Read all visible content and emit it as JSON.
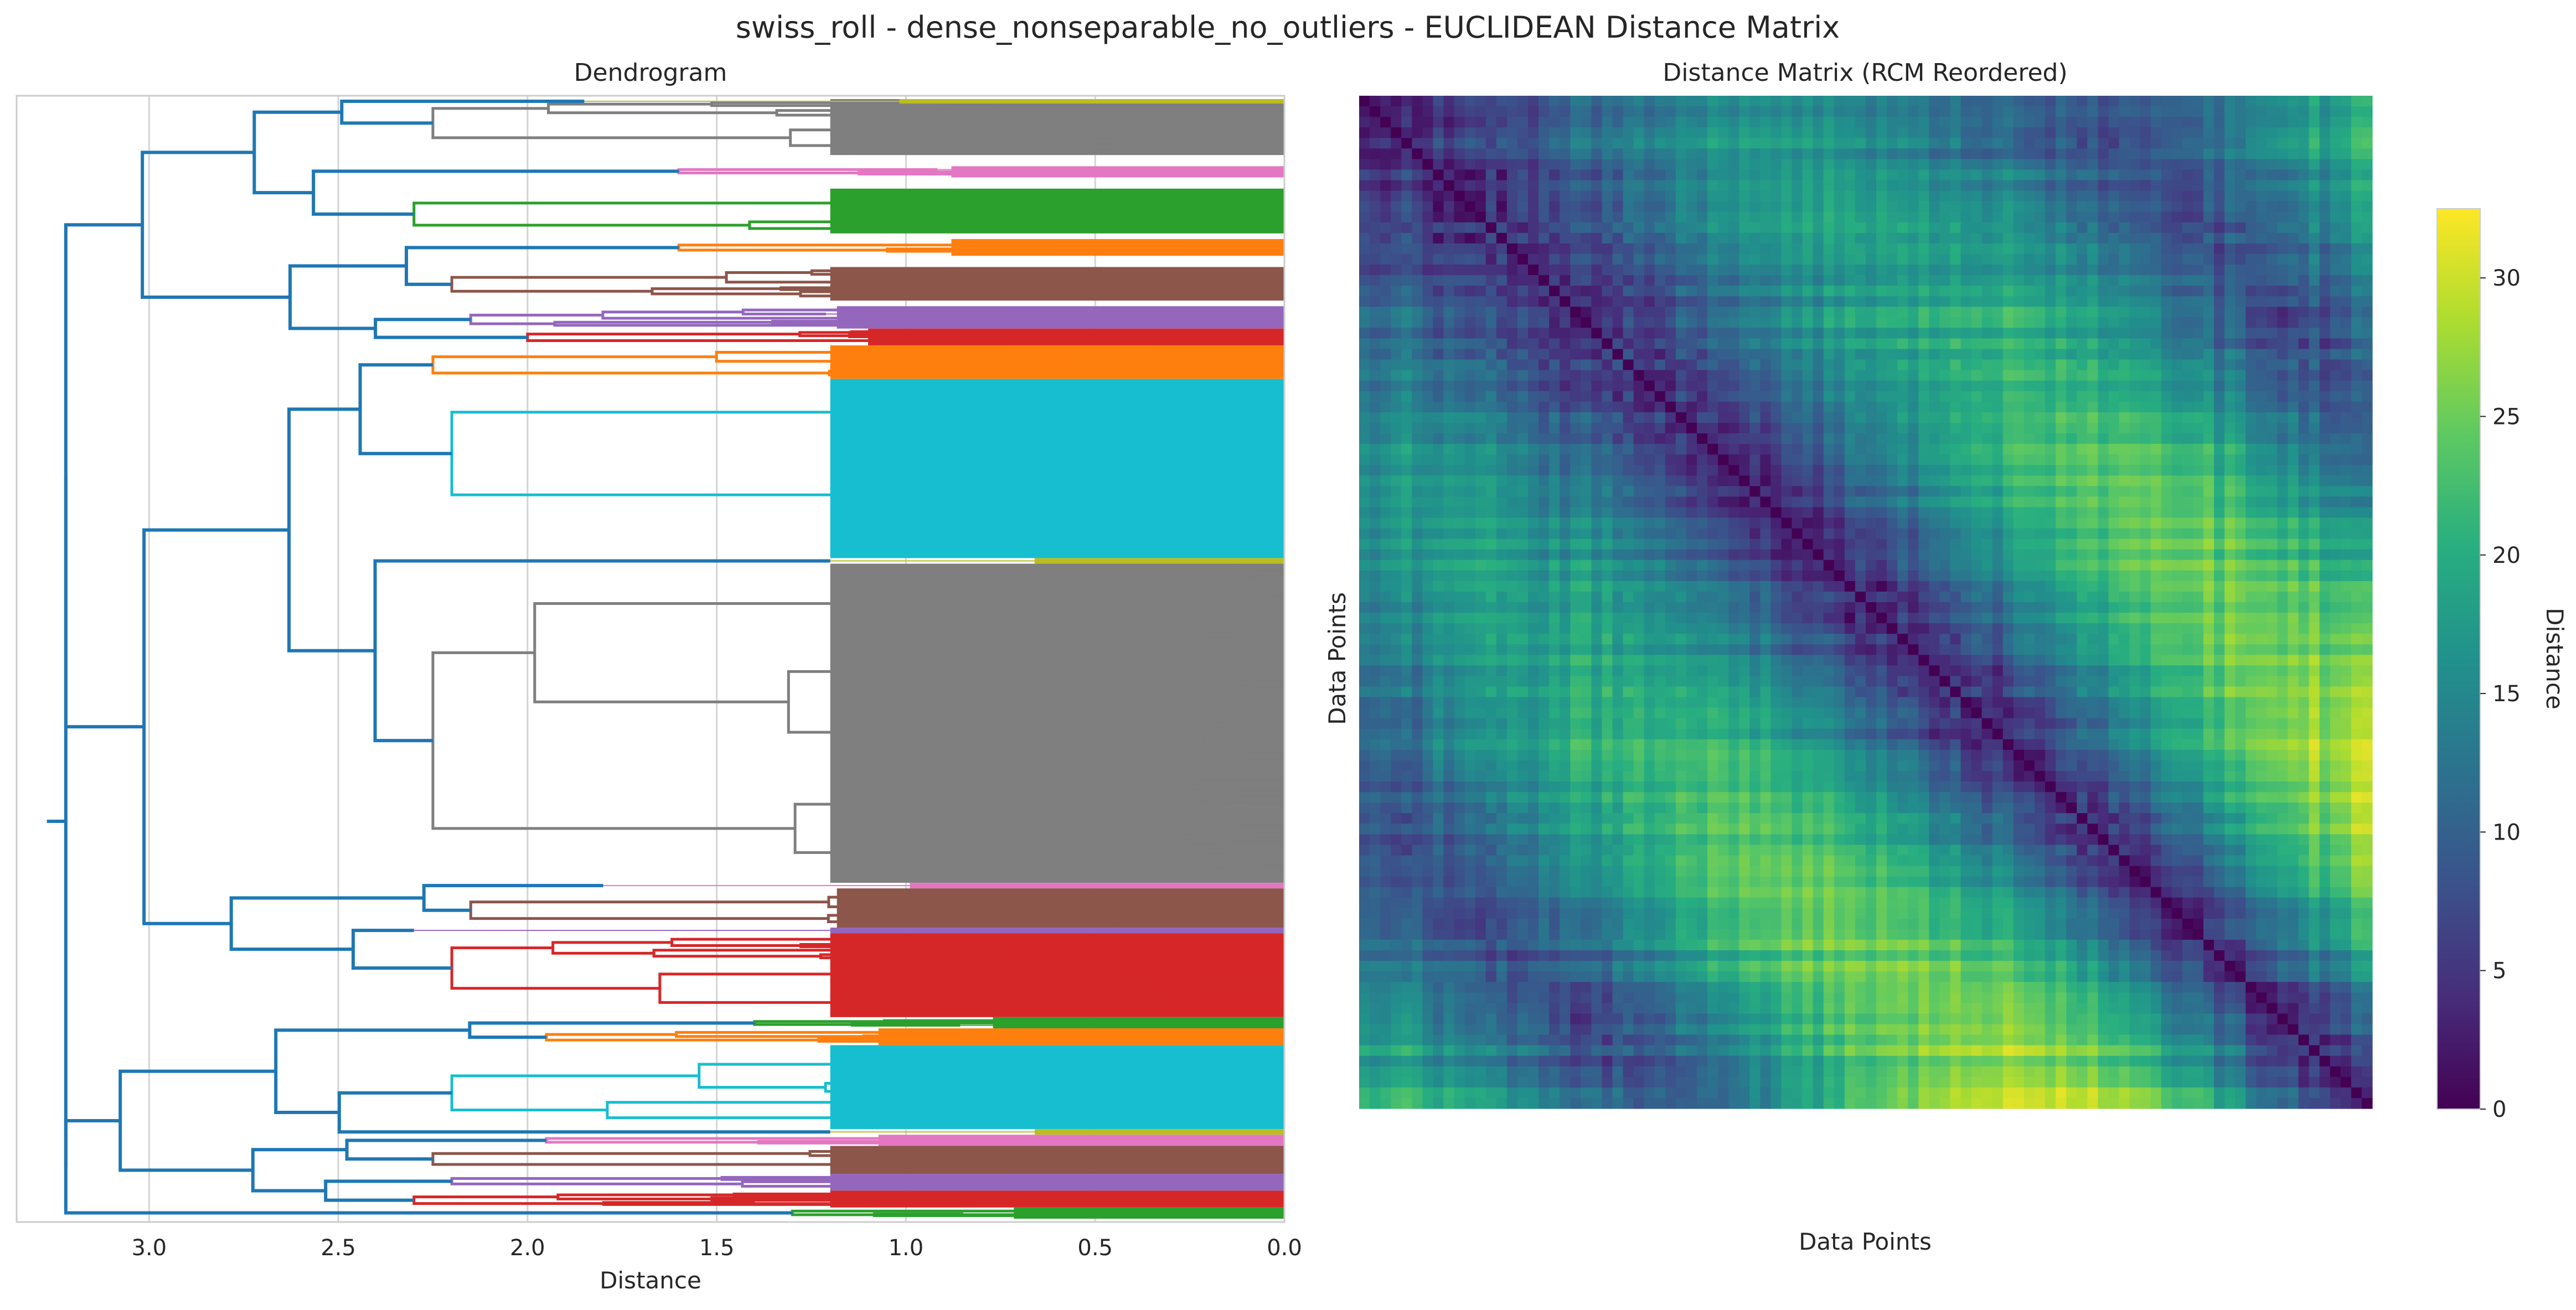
{
  "figure": {
    "suptitle": "swiss_roll - dense_nonseparable_no_outliers - EUCLIDEAN Distance Matrix"
  },
  "chart_data": [
    {
      "type": "dendrogram",
      "title": "Dendrogram",
      "xlabel": "Distance",
      "ylabel": "",
      "xlim": [
        3.35,
        0.0
      ],
      "x_inverted": true,
      "xticks": [
        3.0,
        2.5,
        2.0,
        1.5,
        1.0,
        0.5,
        0.0
      ],
      "xtick_labels": [
        "3.0",
        "2.5",
        "2.0",
        "1.5",
        "1.0",
        "0.5",
        "0.0"
      ],
      "grid": true,
      "root_height": 3.27,
      "above_threshold_color": "#1f77b4",
      "clusters": [
        {
          "color": "#7f7f7f",
          "merge_height": 2.25,
          "span": [
            0.0,
            0.05
          ]
        },
        {
          "color": "#bcbd22",
          "merge_height": 1.85,
          "span": [
            0.0,
            0.004
          ]
        },
        {
          "color": "#e377c2",
          "merge_height": 1.6,
          "span": [
            0.06,
            0.07
          ]
        },
        {
          "color": "#2ca02c",
          "merge_height": 2.3,
          "span": [
            0.08,
            0.12
          ]
        },
        {
          "color": "#ff7f0e",
          "merge_height": 1.6,
          "span": [
            0.125,
            0.14
          ]
        },
        {
          "color": "#8c564b",
          "merge_height": 2.2,
          "span": [
            0.15,
            0.18
          ]
        },
        {
          "color": "#9467bd",
          "merge_height": 2.15,
          "span": [
            0.185,
            0.205
          ]
        },
        {
          "color": "#d62728",
          "merge_height": 2.0,
          "span": [
            0.205,
            0.22
          ]
        },
        {
          "color": "#ff7f0e",
          "merge_height": 2.25,
          "span": [
            0.22,
            0.25
          ]
        },
        {
          "color": "#17becf",
          "merge_height": 2.2,
          "span": [
            0.25,
            0.41
          ]
        },
        {
          "color": "#bcbd22",
          "merge_height": 1.2,
          "span": [
            0.41,
            0.415
          ]
        },
        {
          "color": "#7f7f7f",
          "merge_height": 2.25,
          "span": [
            0.415,
            0.7
          ]
        },
        {
          "color": "#e377c2",
          "merge_height": 1.8,
          "span": [
            0.7,
            0.705
          ]
        },
        {
          "color": "#8c564b",
          "merge_height": 2.15,
          "span": [
            0.705,
            0.74
          ]
        },
        {
          "color": "#9467bd",
          "merge_height": 2.3,
          "span": [
            0.74,
            0.745
          ]
        },
        {
          "color": "#d62728",
          "merge_height": 2.2,
          "span": [
            0.745,
            0.82
          ]
        },
        {
          "color": "#2ca02c",
          "merge_height": 1.4,
          "span": [
            0.82,
            0.83
          ]
        },
        {
          "color": "#ff7f0e",
          "merge_height": 1.95,
          "span": [
            0.83,
            0.845
          ]
        },
        {
          "color": "#17becf",
          "merge_height": 2.2,
          "span": [
            0.845,
            0.92
          ]
        },
        {
          "color": "#bcbd22",
          "merge_height": 1.2,
          "span": [
            0.92,
            0.925
          ]
        },
        {
          "color": "#e377c2",
          "merge_height": 1.95,
          "span": [
            0.925,
            0.935
          ]
        },
        {
          "color": "#8c564b",
          "merge_height": 2.25,
          "span": [
            0.935,
            0.96
          ]
        },
        {
          "color": "#9467bd",
          "merge_height": 2.2,
          "span": [
            0.96,
            0.975
          ]
        },
        {
          "color": "#d62728",
          "merge_height": 2.3,
          "span": [
            0.975,
            0.99
          ]
        },
        {
          "color": "#2ca02c",
          "merge_height": 1.3,
          "span": [
            0.99,
            1.0
          ]
        }
      ]
    },
    {
      "type": "heatmap",
      "title": "Distance Matrix (RCM Reordered)",
      "xlabel": "Data Points",
      "ylabel": "Data Points",
      "colormap": "viridis",
      "colorbar_label": "Distance",
      "vmin": 0,
      "vmax": 32.5,
      "colorbar_ticks": [
        0,
        5,
        10,
        15,
        20,
        25,
        30
      ],
      "colorbar_tick_labels": [
        "0",
        "5",
        "10",
        "15",
        "20",
        "25",
        "30"
      ]
    }
  ]
}
